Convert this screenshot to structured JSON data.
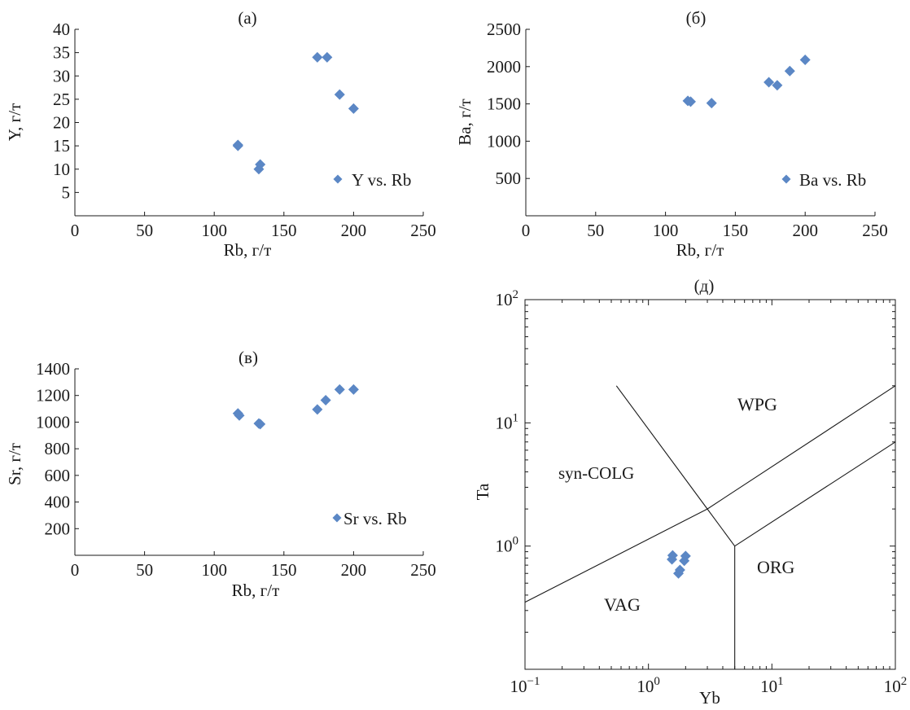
{
  "chart_data": [
    {
      "id": "a",
      "type": "scatter",
      "title": "(а)",
      "xlabel": "Rb, г/т",
      "ylabel": "Y, г/т",
      "xlim": [
        0,
        250
      ],
      "ylim": [
        0,
        40
      ],
      "xticks": [
        0,
        50,
        100,
        150,
        200,
        250
      ],
      "yticks": [
        5,
        10,
        15,
        20,
        25,
        30,
        35,
        40
      ],
      "legend_position": "bottom-right",
      "grid": false,
      "series": [
        {
          "name": "Y vs. Rb",
          "color": "#5b87c5",
          "x": [
            117,
            117,
            132,
            133,
            174,
            181,
            190,
            200
          ],
          "y": [
            15.2,
            15,
            10,
            11,
            34,
            34,
            26,
            23
          ]
        }
      ]
    },
    {
      "id": "b",
      "type": "scatter",
      "title": "(б)",
      "xlabel": "Rb, г/т",
      "ylabel": "Ba, г/т",
      "xlim": [
        0,
        250
      ],
      "ylim": [
        0,
        2500
      ],
      "xticks": [
        0,
        50,
        100,
        150,
        200,
        250
      ],
      "yticks": [
        500,
        1000,
        1500,
        2000,
        2500
      ],
      "legend_position": "bottom-right",
      "grid": false,
      "series": [
        {
          "name": "Ba vs. Rb",
          "color": "#5b87c5",
          "x": [
            116,
            118,
            133,
            174,
            180,
            189,
            200
          ],
          "y": [
            1540,
            1530,
            1510,
            1790,
            1750,
            1940,
            2090
          ]
        }
      ]
    },
    {
      "id": "v",
      "type": "scatter",
      "title": "(в)",
      "xlabel": "Rb, г/т",
      "ylabel": "Sr, г/т",
      "xlim": [
        0,
        250
      ],
      "ylim": [
        0,
        1400
      ],
      "xticks": [
        0,
        50,
        100,
        150,
        200,
        250
      ],
      "yticks": [
        200,
        400,
        600,
        800,
        1000,
        1200,
        1400
      ],
      "legend_position": "bottom-right",
      "grid": false,
      "series": [
        {
          "name": "Sr vs. Rb",
          "color": "#5b87c5",
          "x": [
            117,
            118,
            132,
            133,
            174,
            180,
            190,
            200
          ],
          "y": [
            1065,
            1050,
            990,
            985,
            1095,
            1165,
            1245,
            1245
          ]
        }
      ]
    },
    {
      "id": "d",
      "type": "scatter",
      "title": "(д)",
      "xlabel": "Yb",
      "ylabel": "Ta",
      "x_scale": "log",
      "y_scale": "log",
      "xlim": [
        0.1,
        100
      ],
      "ylim": [
        0.1,
        100
      ],
      "x_tick_exponents": [
        "−1",
        "0",
        "1",
        "2"
      ],
      "y_tick_exponents": [
        "0",
        "1",
        "2"
      ],
      "tick_base": "10",
      "grid": false,
      "series": [
        {
          "color": "#5b87c5",
          "x": [
            1.55,
            1.57,
            1.75,
            1.8,
            1.95,
            2.0
          ],
          "y": [
            0.78,
            0.84,
            0.6,
            0.64,
            0.76,
            0.83
          ]
        }
      ],
      "fields": [
        "WPG",
        "syn-COLG",
        "VAG",
        "ORG"
      ],
      "boundaries": [
        [
          [
            0.1,
            0.35
          ],
          [
            3,
            2
          ]
        ],
        [
          [
            3,
            2
          ],
          [
            100,
            20
          ]
        ],
        [
          [
            0.55,
            20
          ],
          [
            3,
            2
          ]
        ],
        [
          [
            3,
            2
          ],
          [
            5,
            1
          ]
        ],
        [
          [
            5,
            1
          ],
          [
            5,
            0.1
          ]
        ],
        [
          [
            5,
            1
          ],
          [
            100,
            7
          ]
        ]
      ]
    }
  ]
}
